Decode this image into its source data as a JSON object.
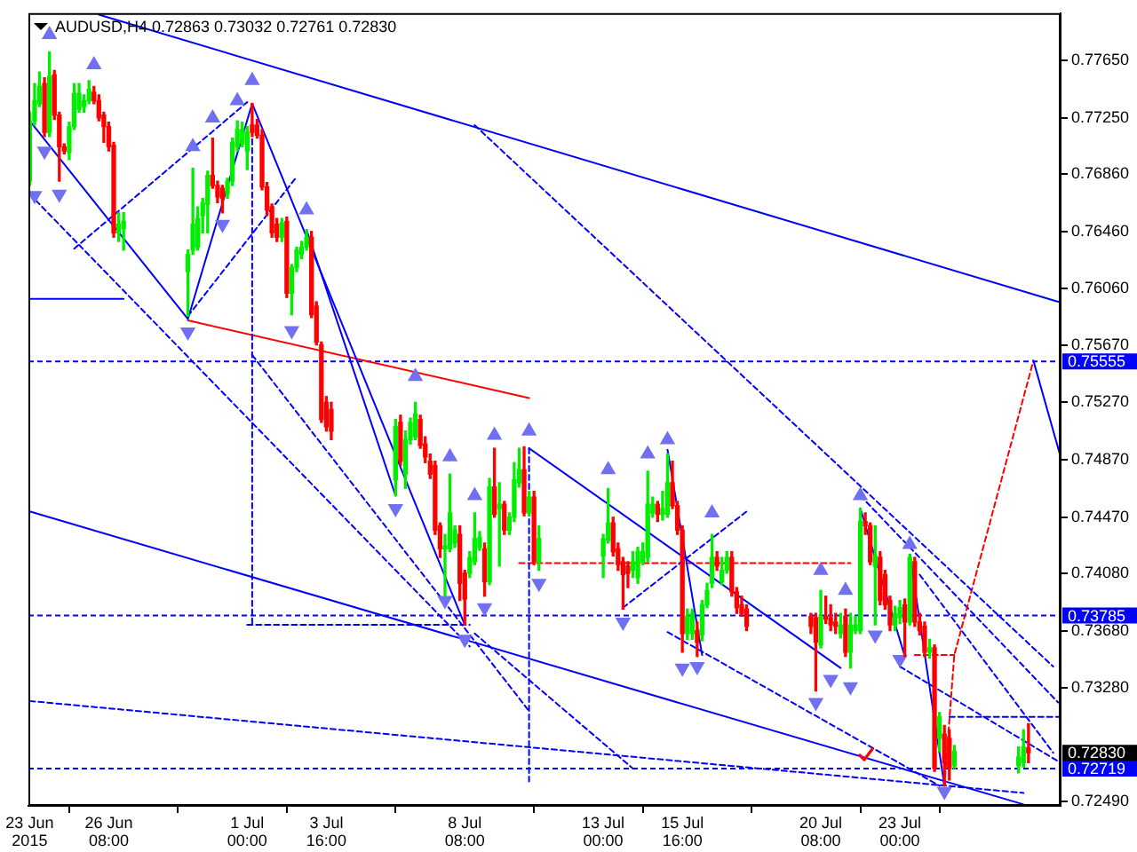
{
  "chart_data": {
    "type": "candlestick",
    "title": "AUDUSD,H4 0.72863 0.73032 0.72761 0.72830",
    "x": [
      "2015-06-23T16:00",
      "2015-06-23T20:00",
      "2015-06-24T00:00",
      "2015-06-24T04:00",
      "2015-06-24T08:00",
      "2015-06-24T12:00",
      "2015-06-24T16:00",
      "2015-06-24T20:00",
      "2015-06-25T00:00",
      "2015-06-25T04:00",
      "2015-06-25T08:00",
      "2015-06-25T12:00",
      "2015-06-25T16:00",
      "2015-06-25T20:00",
      "2015-06-26T00:00",
      "2015-06-26T04:00",
      "2015-06-26T08:00",
      "2015-06-26T12:00",
      "2015-06-26T16:00",
      "2015-06-26T20:00",
      "2015-06-29T00:00",
      "2015-06-29T04:00",
      "2015-06-29T08:00",
      "2015-06-29T12:00",
      "2015-06-29T16:00",
      "2015-06-29T20:00",
      "2015-06-30T00:00",
      "2015-06-30T04:00",
      "2015-06-30T08:00",
      "2015-06-30T12:00",
      "2015-06-30T16:00",
      "2015-06-30T20:00",
      "2015-07-01T00:00",
      "2015-07-01T04:00",
      "2015-07-01T08:00",
      "2015-07-01T12:00",
      "2015-07-01T16:00",
      "2015-07-01T20:00",
      "2015-07-02T00:00",
      "2015-07-02T04:00",
      "2015-07-02T08:00",
      "2015-07-02T12:00",
      "2015-07-02T16:00",
      "2015-07-02T20:00",
      "2015-07-03T00:00",
      "2015-07-03T04:00",
      "2015-07-03T08:00",
      "2015-07-03T12:00",
      "2015-07-03T16:00",
      "2015-07-03T20:00",
      "2015-07-06T00:00",
      "2015-07-06T04:00",
      "2015-07-06T08:00",
      "2015-07-06T12:00",
      "2015-07-06T16:00",
      "2015-07-06T20:00",
      "2015-07-07T00:00",
      "2015-07-07T04:00",
      "2015-07-07T08:00",
      "2015-07-07T12:00",
      "2015-07-07T16:00",
      "2015-07-07T20:00",
      "2015-07-08T00:00",
      "2015-07-08T04:00",
      "2015-07-08T08:00",
      "2015-07-08T12:00",
      "2015-07-08T16:00",
      "2015-07-08T20:00",
      "2015-07-09T00:00",
      "2015-07-09T04:00",
      "2015-07-09T08:00",
      "2015-07-09T12:00",
      "2015-07-09T16:00",
      "2015-07-09T20:00",
      "2015-07-10T00:00",
      "2015-07-10T04:00",
      "2015-07-10T08:00",
      "2015-07-10T12:00",
      "2015-07-10T16:00",
      "2015-07-10T20:00",
      "2015-07-13T00:00",
      "2015-07-13T04:00",
      "2015-07-13T08:00",
      "2015-07-13T12:00",
      "2015-07-13T16:00",
      "2015-07-13T20:00",
      "2015-07-14T00:00",
      "2015-07-14T04:00",
      "2015-07-14T08:00",
      "2015-07-14T12:00",
      "2015-07-14T16:00",
      "2015-07-14T20:00",
      "2015-07-15T00:00",
      "2015-07-15T04:00",
      "2015-07-15T08:00",
      "2015-07-15T12:00",
      "2015-07-15T16:00",
      "2015-07-15T20:00",
      "2015-07-16T00:00",
      "2015-07-16T04:00",
      "2015-07-16T08:00",
      "2015-07-16T12:00",
      "2015-07-16T16:00",
      "2015-07-16T20:00",
      "2015-07-17T00:00",
      "2015-07-17T04:00",
      "2015-07-17T08:00",
      "2015-07-17T12:00",
      "2015-07-17T16:00",
      "2015-07-17T20:00",
      "2015-07-20T00:00",
      "2015-07-20T04:00",
      "2015-07-20T08:00",
      "2015-07-20T12:00",
      "2015-07-20T16:00",
      "2015-07-20T20:00",
      "2015-07-21T00:00",
      "2015-07-21T04:00",
      "2015-07-21T08:00",
      "2015-07-21T12:00",
      "2015-07-21T16:00",
      "2015-07-21T20:00",
      "2015-07-22T00:00",
      "2015-07-22T04:00",
      "2015-07-22T08:00",
      "2015-07-22T12:00",
      "2015-07-22T16:00",
      "2015-07-22T20:00",
      "2015-07-23T00:00",
      "2015-07-23T04:00",
      "2015-07-23T08:00",
      "2015-07-23T12:00",
      "2015-07-23T16:00",
      "2015-07-23T20:00",
      "2015-07-24T00:00",
      "2015-07-24T04:00",
      "2015-07-24T08:00",
      "2015-07-24T12:00",
      "2015-07-24T16:00",
      "2015-07-24T20:00",
      "2015-07-27T00:00",
      "2015-07-27T04:00",
      "2015-07-27T08:00"
    ],
    "ohlc": [
      [
        0.7681,
        0.7729,
        0.7678,
        0.7723
      ],
      [
        0.7723,
        0.7749,
        0.772,
        0.7737
      ],
      [
        0.7735,
        0.7757,
        0.7733,
        0.7747
      ],
      [
        0.7749,
        0.7753,
        0.7712,
        0.7715
      ],
      [
        0.7715,
        0.7771,
        0.7712,
        0.7754
      ],
      [
        0.7755,
        0.7758,
        0.7724,
        0.7727
      ],
      [
        0.7727,
        0.7729,
        0.7681,
        0.7705
      ],
      [
        0.7705,
        0.7707,
        0.77,
        0.7702
      ],
      [
        0.7701,
        0.7722,
        0.7696,
        0.7719
      ],
      [
        0.7719,
        0.7749,
        0.7717,
        0.7742
      ],
      [
        0.7731,
        0.7749,
        0.7729,
        0.7742
      ],
      [
        0.7733,
        0.7741,
        0.7729,
        0.7737
      ],
      [
        0.7737,
        0.7751,
        0.7735,
        0.7745
      ],
      [
        0.7743,
        0.7747,
        0.7735,
        0.7737
      ],
      [
        0.7737,
        0.7741,
        0.7723,
        0.7725
      ],
      [
        0.7727,
        0.7729,
        0.7708,
        0.7719
      ],
      [
        0.7719,
        0.7722,
        0.7702,
        0.7705
      ],
      [
        0.7706,
        0.7708,
        0.7642,
        0.7645
      ],
      [
        0.7645,
        0.7659,
        0.7639,
        0.7651
      ],
      [
        0.7648,
        0.7659,
        0.7633,
        0.7653
      ],
      [
        0.7618,
        0.7633,
        0.7587,
        0.763
      ],
      [
        0.7633,
        0.769,
        0.763,
        0.7651
      ],
      [
        0.7635,
        0.7663,
        0.7633,
        0.7655
      ],
      [
        0.7657,
        0.7669,
        0.7645,
        0.7666
      ],
      [
        0.7665,
        0.7688,
        0.7645,
        0.7685
      ],
      [
        0.7685,
        0.7711,
        0.7676,
        0.7678
      ],
      [
        0.7678,
        0.7681,
        0.7666,
        0.767
      ],
      [
        0.7676,
        0.7678,
        0.7659,
        0.7669
      ],
      [
        0.7672,
        0.7683,
        0.7669,
        0.7681
      ],
      [
        0.7681,
        0.7711,
        0.7678,
        0.7708
      ],
      [
        0.7705,
        0.7723,
        0.7702,
        0.7717
      ],
      [
        0.7707,
        0.7722,
        0.7705,
        0.7717
      ],
      [
        0.7702,
        0.7719,
        0.7689,
        0.7715
      ],
      [
        0.772,
        0.7735,
        0.7712,
        0.7715
      ],
      [
        0.772,
        0.7724,
        0.7711,
        0.7713
      ],
      [
        0.7713,
        0.7717,
        0.7675,
        0.7677
      ],
      [
        0.7677,
        0.768,
        0.7657,
        0.7661
      ],
      [
        0.7663,
        0.7665,
        0.7642,
        0.7645
      ],
      [
        0.7651,
        0.7655,
        0.7639,
        0.7642
      ],
      [
        0.7642,
        0.7655,
        0.7639,
        0.7652
      ],
      [
        0.7653,
        0.7656,
        0.76,
        0.7603
      ],
      [
        0.7603,
        0.7623,
        0.7588,
        0.7621
      ],
      [
        0.7621,
        0.7635,
        0.7618,
        0.7633
      ],
      [
        0.763,
        0.7639,
        0.7627,
        0.7635
      ],
      [
        0.7635,
        0.7647,
        0.7633,
        0.7642
      ],
      [
        0.7642,
        0.7646,
        0.7586,
        0.7588
      ],
      [
        0.7594,
        0.7597,
        0.7567,
        0.7569
      ],
      [
        0.7567,
        0.7569,
        0.7513,
        0.7515
      ],
      [
        0.7527,
        0.7531,
        0.7507,
        0.751
      ],
      [
        0.7522,
        0.7527,
        0.7501,
        0.7507
      ],
      [
        0.7473,
        0.7515,
        0.7462,
        0.751
      ],
      [
        0.7513,
        0.7518,
        0.7483,
        0.7486
      ],
      [
        0.7477,
        0.7507,
        0.7467,
        0.7501
      ],
      [
        0.7501,
        0.7516,
        0.7498,
        0.7513
      ],
      [
        0.7503,
        0.7527,
        0.7501,
        0.7519
      ],
      [
        0.7515,
        0.7518,
        0.7495,
        0.7497
      ],
      [
        0.7498,
        0.7503,
        0.7485,
        0.7489
      ],
      [
        0.7486,
        0.7491,
        0.7474,
        0.7477
      ],
      [
        0.7483,
        0.7486,
        0.7435,
        0.7438
      ],
      [
        0.7441,
        0.7443,
        0.7419,
        0.7425
      ],
      [
        0.7425,
        0.7435,
        0.7392,
        0.7427
      ],
      [
        0.7425,
        0.7477,
        0.7423,
        0.745
      ],
      [
        0.7429,
        0.7441,
        0.7426,
        0.7438
      ],
      [
        0.7435,
        0.7441,
        0.7389,
        0.7401
      ],
      [
        0.7408,
        0.741,
        0.7372,
        0.739
      ],
      [
        0.7408,
        0.7423,
        0.7405,
        0.7419
      ],
      [
        0.7416,
        0.745,
        0.7414,
        0.7432
      ],
      [
        0.7426,
        0.7437,
        0.7424,
        0.7433
      ],
      [
        0.7425,
        0.7429,
        0.7392,
        0.7402
      ],
      [
        0.7402,
        0.7474,
        0.74,
        0.7468
      ],
      [
        0.7468,
        0.7495,
        0.7447,
        0.7449
      ],
      [
        0.7453,
        0.7471,
        0.7413,
        0.7456
      ],
      [
        0.7456,
        0.7458,
        0.7435,
        0.7438
      ],
      [
        0.7438,
        0.745,
        0.7435,
        0.7447
      ],
      [
        0.7447,
        0.7485,
        0.7444,
        0.7473
      ],
      [
        0.7471,
        0.7495,
        0.7468,
        0.748
      ],
      [
        0.748,
        0.7496,
        0.7448,
        0.745
      ],
      [
        0.745,
        0.7465,
        0.7448,
        0.7461
      ],
      [
        0.7461,
        0.7465,
        0.7414,
        0.7416
      ],
      [
        0.7416,
        0.7441,
        0.741,
        0.7432
      ],
      [
        0.742,
        0.7435,
        0.7405,
        0.7432
      ],
      [
        0.7431,
        0.7467,
        0.7429,
        0.7443
      ],
      [
        0.7443,
        0.7447,
        0.742,
        0.7423
      ],
      [
        0.7425,
        0.7429,
        0.741,
        0.7414
      ],
      [
        0.7416,
        0.7419,
        0.7383,
        0.7407
      ],
      [
        0.7413,
        0.7416,
        0.7398,
        0.7408
      ],
      [
        0.741,
        0.7423,
        0.7405,
        0.7416
      ],
      [
        0.7405,
        0.7426,
        0.7401,
        0.7423
      ],
      [
        0.7416,
        0.7429,
        0.7414,
        0.7423
      ],
      [
        0.7419,
        0.7479,
        0.7416,
        0.7456
      ],
      [
        0.745,
        0.7461,
        0.7447,
        0.7456
      ],
      [
        0.7456,
        0.7458,
        0.7444,
        0.7449
      ],
      [
        0.7449,
        0.7465,
        0.7445,
        0.7453
      ],
      [
        0.7449,
        0.7491,
        0.7447,
        0.7471
      ],
      [
        0.7471,
        0.7486,
        0.7453,
        0.7455
      ],
      [
        0.7455,
        0.7458,
        0.7435,
        0.7438
      ],
      [
        0.7438,
        0.7441,
        0.7353,
        0.7366
      ],
      [
        0.7366,
        0.7383,
        0.7362,
        0.7378
      ],
      [
        0.7366,
        0.7383,
        0.7362,
        0.738
      ],
      [
        0.7368,
        0.7374,
        0.735,
        0.736
      ],
      [
        0.7365,
        0.7389,
        0.7361,
        0.7386
      ],
      [
        0.7386,
        0.7401,
        0.7384,
        0.7396
      ],
      [
        0.7401,
        0.7435,
        0.7398,
        0.7419
      ],
      [
        0.7419,
        0.7423,
        0.741,
        0.7413
      ],
      [
        0.7402,
        0.7419,
        0.74,
        0.741
      ],
      [
        0.741,
        0.7423,
        0.7408,
        0.7419
      ],
      [
        0.7419,
        0.7423,
        0.7392,
        0.7395
      ],
      [
        0.7395,
        0.7398,
        0.738,
        0.7384
      ],
      [
        0.7386,
        0.7392,
        0.7378,
        0.738
      ],
      [
        0.7383,
        0.7386,
        0.7368,
        0.7371
      ],
      [
        0.7378,
        0.738,
        0.7366,
        0.7371
      ],
      [
        0.7377,
        0.738,
        0.7326,
        0.736
      ],
      [
        0.7358,
        0.7396,
        0.7356,
        0.7378
      ],
      [
        0.7378,
        0.7392,
        0.7373,
        0.7376
      ],
      [
        0.7377,
        0.7386,
        0.7368,
        0.7372
      ],
      [
        0.7374,
        0.738,
        0.7366,
        0.7371
      ],
      [
        0.7366,
        0.738,
        0.7363,
        0.7372
      ],
      [
        0.7378,
        0.7383,
        0.735,
        0.7353
      ],
      [
        0.7353,
        0.738,
        0.7342,
        0.7372
      ],
      [
        0.7368,
        0.7378,
        0.7366,
        0.7372
      ],
      [
        0.7368,
        0.7453,
        0.7366,
        0.7444
      ],
      [
        0.7444,
        0.745,
        0.7435,
        0.7441
      ],
      [
        0.7441,
        0.7443,
        0.7414,
        0.7416
      ],
      [
        0.7413,
        0.7441,
        0.7372,
        0.742
      ],
      [
        0.7419,
        0.7423,
        0.7386,
        0.7389
      ],
      [
        0.7407,
        0.741,
        0.7383,
        0.7386
      ],
      [
        0.7389,
        0.7392,
        0.7368,
        0.7372
      ],
      [
        0.7372,
        0.7385,
        0.7368,
        0.738
      ],
      [
        0.7377,
        0.7389,
        0.7373,
        0.7384
      ],
      [
        0.7386,
        0.739,
        0.735,
        0.7374
      ],
      [
        0.7374,
        0.7421,
        0.7372,
        0.7419
      ],
      [
        0.7416,
        0.7419,
        0.7371,
        0.7374
      ],
      [
        0.7374,
        0.738,
        0.7365,
        0.7368
      ],
      [
        0.7371,
        0.7374,
        0.735,
        0.7353
      ],
      [
        0.7353,
        0.7362,
        0.7349,
        0.7356
      ],
      [
        0.7356,
        0.7358,
        0.727,
        0.7272
      ],
      [
        0.7293,
        0.7311,
        0.7284,
        0.7308
      ],
      [
        0.7296,
        0.7302,
        0.726,
        0.7276
      ],
      [
        0.7293,
        0.7299,
        0.7264,
        0.7272
      ],
      [
        0.7274,
        0.7288,
        0.7272,
        0.7284
      ],
      [
        0.7274,
        0.7287,
        0.7269,
        0.728
      ],
      [
        0.7276,
        0.7299,
        0.7273,
        0.7287
      ],
      [
        0.72863,
        0.73032,
        0.72761,
        0.7283
      ]
    ],
    "colors": [
      "#00ee00",
      "#00ee00",
      "#00ee00",
      "#ff0000",
      "#00ee00",
      "#ff0000",
      "#ff0000",
      "#ff0000",
      "#00ee00",
      "#00ee00",
      "#00ee00",
      "#00ee00",
      "#00ee00",
      "#ff0000",
      "#ff0000",
      "#ff0000",
      "#ff0000",
      "#ff0000",
      "#00ee00",
      "#00ee00",
      "#00ee00",
      "#00ee00",
      "#00ee00",
      "#00ee00",
      "#00ee00",
      "#ff0000",
      "#ff0000",
      "#ff0000",
      "#00ee00",
      "#00ee00",
      "#00ee00",
      "#00ee00",
      "#00ee00",
      "#ff0000",
      "#ff0000",
      "#ff0000",
      "#ff0000",
      "#ff0000",
      "#ff0000",
      "#00ee00",
      "#ff0000",
      "#00ee00",
      "#00ee00",
      "#00ee00",
      "#00ee00",
      "#ff0000",
      "#ff0000",
      "#ff0000",
      "#ff0000",
      "#ff0000",
      "#00ee00",
      "#ff0000",
      "#00ee00",
      "#00ee00",
      "#00ee00",
      "#ff0000",
      "#ff0000",
      "#ff0000",
      "#ff0000",
      "#ff0000",
      "#00ee00",
      "#00ee00",
      "#00ee00",
      "#ff0000",
      "#ff0000",
      "#00ee00",
      "#00ee00",
      "#00ee00",
      "#ff0000",
      "#00ee00",
      "#ff0000",
      "#00ee00",
      "#ff0000",
      "#00ee00",
      "#00ee00",
      "#00ee00",
      "#ff0000",
      "#00ee00",
      "#ff0000",
      "#00ee00",
      "#00ee00",
      "#00ee00",
      "#ff0000",
      "#ff0000",
      "#ff0000",
      "#ff0000",
      "#00ee00",
      "#00ee00",
      "#00ee00",
      "#00ee00",
      "#00ee00",
      "#ff0000",
      "#00ee00",
      "#00ee00",
      "#ff0000",
      "#ff0000",
      "#ff0000",
      "#00ee00",
      "#00ee00",
      "#ff0000",
      "#00ee00",
      "#00ee00",
      "#00ee00",
      "#ff0000",
      "#00ee00",
      "#00ee00",
      "#ff0000",
      "#ff0000",
      "#ff0000",
      "#ff0000",
      "#ff0000",
      "#ff0000",
      "#00ee00",
      "#ff0000",
      "#ff0000",
      "#ff0000",
      "#00ee00",
      "#ff0000",
      "#00ee00",
      "#00ee00",
      "#00ee00",
      "#ff0000",
      "#ff0000",
      "#00ee00",
      "#ff0000",
      "#ff0000",
      "#ff0000",
      "#00ee00",
      "#00ee00",
      "#ff0000",
      "#00ee00",
      "#ff0000",
      "#ff0000",
      "#ff0000",
      "#00ee00",
      "#ff0000",
      "#00ee00",
      "#ff0000",
      "#ff0000",
      "#00ee00",
      "#00ee00",
      "#00ee00",
      "#ff0000"
    ],
    "xlim": [
      "2015-06-23T15:00",
      "2015-07-28T10:00"
    ],
    "xticks": [
      {
        "value": "2015-06-23T16:00",
        "label": "23 Jun 2015"
      },
      {
        "value": "2015-06-26T08:00",
        "label": "26 Jun 08:00"
      },
      {
        "value": "2015-07-01T00:00",
        "label": "1 Jul 00:00"
      },
      {
        "value": "2015-07-03T16:00",
        "label": "3 Jul 16:00"
      },
      {
        "value": "2015-07-08T08:00",
        "label": "8 Jul 08:00"
      },
      {
        "value": "2015-07-13T00:00",
        "label": "13 Jul 00:00"
      },
      {
        "value": "2015-07-15T16:00",
        "label": "15 Jul 16:00"
      },
      {
        "value": "2015-07-20T08:00",
        "label": "20 Jul 08:00"
      },
      {
        "value": "2015-07-23T00:00",
        "label": "23 Jul 00:00"
      }
    ],
    "ylim": [
      0.7246,
      0.7798
    ],
    "yticks": [
      {
        "value": 0.7765,
        "label": "0.77650"
      },
      {
        "value": 0.7725,
        "label": "0.77250"
      },
      {
        "value": 0.7686,
        "label": "0.76860"
      },
      {
        "value": 0.7646,
        "label": "0.76460"
      },
      {
        "value": 0.7606,
        "label": "0.76060"
      },
      {
        "value": 0.7567,
        "label": "0.75670"
      },
      {
        "value": 0.7527,
        "label": "0.75270"
      },
      {
        "value": 0.7487,
        "label": "0.74870"
      },
      {
        "value": 0.7447,
        "label": "0.74470"
      },
      {
        "value": 0.7408,
        "label": "0.74080"
      },
      {
        "value": 0.7368,
        "label": "0.73680"
      },
      {
        "value": 0.7328,
        "label": "0.73280"
      },
      {
        "value": 0.7249,
        "label": "0.72490"
      }
    ],
    "series": [
      {
        "type": "line",
        "color": "#0000ff",
        "line_style": "solid",
        "x": [
          "2015-06-26T00:00",
          "2015-07-28T08:00"
        ],
        "values": [
          0.7797,
          0.7597
        ]
      },
      {
        "type": "line",
        "color": "#0000ff",
        "line_style": "solid",
        "x": [
          "2015-06-23T16:00",
          "2015-07-27T04:00"
        ],
        "values": [
          0.7451,
          0.7247
        ]
      },
      {
        "type": "line",
        "color": "#0000ff",
        "line_style": "solid",
        "x": [
          "2015-06-23T16:00",
          "2015-06-26T20:00"
        ],
        "values": [
          0.7599,
          0.7599
        ]
      },
      {
        "type": "line",
        "color": "#0000ff",
        "line_style": "solid",
        "x": [
          "2015-06-23T16:00",
          "2015-06-29T00:00",
          "2015-07-01T04:00",
          "2015-07-08T08:00"
        ],
        "values": [
          0.7723,
          0.7585,
          0.7735,
          0.7372
        ]
      },
      {
        "type": "line",
        "color": "#0000ff",
        "line_style": "solid",
        "x": [
          "2015-07-03T00:00",
          "2015-07-06T00:00"
        ],
        "values": [
          0.7647,
          0.7462
        ]
      },
      {
        "type": "line",
        "color": "#0000ff",
        "line_style": "solid",
        "x": [
          "2015-07-10T12:00",
          "2015-07-21T00:00"
        ],
        "values": [
          0.7495,
          0.7342
        ]
      },
      {
        "type": "line",
        "color": "#0000ff",
        "line_style": "solid",
        "x": [
          "2015-07-15T04:00",
          "2015-07-16T08:00"
        ],
        "values": [
          0.7494,
          0.7351
        ]
      },
      {
        "type": "line",
        "color": "#0000ff",
        "line_style": "solid",
        "x": [
          "2015-07-21T16:00",
          "2015-07-23T04:00"
        ],
        "values": [
          0.7453,
          0.735
        ]
      },
      {
        "type": "line",
        "color": "#0000ff",
        "line_style": "solid",
        "x": [
          "2015-07-23T08:00",
          "2015-07-24T12:00"
        ],
        "values": [
          0.7421,
          0.726
        ]
      },
      {
        "type": "line",
        "color": "#0000ff",
        "line_style": "solid",
        "x": [
          "2015-07-27T12:00",
          "2015-07-28T10:00"
        ],
        "values": [
          0.7556,
          0.7489
        ]
      },
      {
        "type": "line",
        "color": "#0000ff",
        "line_style": "dashed",
        "x": [
          "2015-07-08T16:00",
          "2015-07-28T04:00"
        ],
        "values": [
          0.772,
          0.7343
        ]
      },
      {
        "type": "line",
        "color": "#0000ff",
        "line_style": "dashed",
        "x": [
          "2015-07-13T16:00",
          "2015-07-17T20:00"
        ],
        "values": [
          0.7384,
          0.7451
        ]
      },
      {
        "type": "line",
        "color": "#0000ff",
        "line_style": "dashed",
        "x": [
          "2015-06-23T16:00",
          "2015-07-27T04:00"
        ],
        "values": [
          0.7319,
          0.7255
        ]
      },
      {
        "type": "line",
        "color": "#0000ff",
        "line_style": "dashed",
        "x": [
          "2015-06-29T00:00",
          "2015-07-02T16:00"
        ],
        "values": [
          0.7587,
          0.7684
        ]
      },
      {
        "type": "line",
        "color": "#0000ff",
        "line_style": "dashed",
        "x": [
          "2015-07-08T16:00",
          "2015-07-14T00:00"
        ],
        "values": [
          0.7366,
          0.7272
        ]
      },
      {
        "type": "line",
        "color": "#0000ff",
        "line_style": "dashed",
        "x": [
          "2015-07-01T04:00",
          "2015-07-10T12:00"
        ],
        "values": [
          0.756,
          0.7312
        ]
      },
      {
        "type": "line",
        "color": "#0000ff",
        "line_style": "dashed",
        "x": [
          "2015-07-01T00:00",
          "2015-07-08T12:00"
        ],
        "values": [
          0.7372,
          0.7372
        ]
      },
      {
        "type": "line",
        "color": "#0000ff",
        "line_style": "dashed",
        "x": [
          "2015-07-01T04:00",
          "2015-07-01T04:00"
        ],
        "values": [
          0.7735,
          0.7372
        ]
      },
      {
        "type": "line",
        "color": "#0000ff",
        "line_style": "dashed",
        "x": [
          "2015-07-10T12:00",
          "2015-07-10T12:00"
        ],
        "values": [
          0.7495,
          0.7263
        ]
      },
      {
        "type": "line",
        "color": "#0000ff",
        "line_style": "dashed",
        "x": [
          "2015-07-24T16:00",
          "2015-07-28T10:00"
        ],
        "values": [
          0.7308,
          0.7308
        ]
      },
      {
        "type": "line",
        "color": "#0000ff",
        "line_style": "dashed",
        "x": [
          "2015-06-23T16:00",
          "2015-07-08T12:00"
        ],
        "values": [
          0.7672,
          0.7357
        ]
      },
      {
        "type": "line",
        "color": "#0000ff",
        "line_style": "dashed",
        "x": [
          "2015-06-25T04:00",
          "2015-07-01T00:00"
        ],
        "values": [
          0.7634,
          0.7736
        ]
      },
      {
        "type": "line",
        "color": "#ff0000",
        "line_style": "solid",
        "x": [
          "2015-06-29T00:00",
          "2015-07-10T12:00"
        ],
        "values": [
          0.7584,
          0.753
        ]
      },
      {
        "type": "line",
        "color": "#ff0000",
        "line_style": "dashed",
        "x": [
          "2015-07-10T04:00",
          "2015-07-21T08:00"
        ],
        "values": [
          0.7415,
          0.7415
        ]
      },
      {
        "type": "line",
        "color": "#ff0000",
        "line_style": "dashed",
        "x": [
          "2015-07-23T12:00",
          "2015-07-24T20:00"
        ],
        "values": [
          0.7351,
          0.7351
        ]
      },
      {
        "type": "line",
        "color": "#ff0000",
        "line_style": "dashed",
        "x": [
          "2015-07-24T12:00",
          "2015-07-24T20:00",
          "2015-07-27T12:00"
        ],
        "values": [
          0.726,
          0.7351,
          0.7556
        ]
      },
      {
        "type": "scatter",
        "color": "#7070f0",
        "marker": "triangle",
        "x": [
          "2015-06-23T20:00",
          "2015-06-24T04:00",
          "2015-06-24T08:00",
          "2015-06-24T16:00",
          "2015-06-25T20:00",
          "2015-06-29T00:00",
          "2015-06-29T04:00",
          "2015-06-29T20:00",
          "2015-06-30T04:00",
          "2015-06-30T16:00",
          "2015-07-01T04:00",
          "2015-07-02T12:00",
          "2015-07-03T00:00",
          "2015-07-06T00:00",
          "2015-07-06T16:00",
          "2015-07-07T16:00",
          "2015-07-07T20:00",
          "2015-07-08T08:00",
          "2015-07-08T16:00",
          "2015-07-09T00:00",
          "2015-07-09T08:00",
          "2015-07-10T12:00",
          "2015-07-10T20:00",
          "2015-07-13T04:00",
          "2015-07-13T16:00",
          "2015-07-14T12:00",
          "2015-07-15T04:00",
          "2015-07-15T16:00",
          "2015-07-16T04:00",
          "2015-07-16T16:00",
          "2015-07-20T04:00",
          "2015-07-20T08:00",
          "2015-07-20T16:00",
          "2015-07-21T04:00",
          "2015-07-21T08:00",
          "2015-07-21T16:00",
          "2015-07-22T04:00",
          "2015-07-23T00:00",
          "2015-07-23T08:00",
          "2015-07-24T12:00"
        ],
        "values": [
          0.7671,
          0.7702,
          0.7783,
          0.7672,
          0.7762,
          0.7576,
          0.7705,
          0.7725,
          0.7651,
          0.7737,
          0.7751,
          0.7577,
          0.7661,
          0.7453,
          0.7545,
          0.7389,
          0.7489,
          0.7362,
          0.7462,
          0.7384,
          0.7504,
          0.7507,
          0.7401,
          0.748,
          0.7374,
          0.7491,
          0.7501,
          0.7342,
          0.7343,
          0.745,
          0.7318,
          0.741,
          0.7334,
          0.7396,
          0.7329,
          0.7462,
          0.7365,
          0.7348,
          0.7428,
          0.7256
        ]
      },
      {
        "type": "line",
        "color": "#0000ff",
        "line_style": "dashed",
        "x": [
          "2015-07-21T16:00",
          "2015-07-28T08:00"
        ],
        "values": [
          0.7462,
          0.7318
        ]
      },
      {
        "type": "line",
        "color": "#0000ff",
        "line_style": "dashed",
        "x": [
          "2015-07-23T16:00",
          "2015-07-28T04:00"
        ],
        "values": [
          0.7407,
          0.7283
        ]
      },
      {
        "type": "line",
        "color": "#0000ff",
        "line_style": "dashed",
        "x": [
          "2015-07-23T00:00",
          "2015-07-28T10:00"
        ],
        "values": [
          0.7343,
          0.7276
        ]
      },
      {
        "type": "line",
        "color": "#0000ff",
        "line_style": "dashed",
        "x": [
          "2015-07-15T04:00",
          "2015-07-24T08:00"
        ],
        "values": [
          0.7367,
          0.726
        ]
      }
    ],
    "ref_lines": [
      {
        "axis": "y",
        "value": 0.75555,
        "label": "0.75555",
        "color": "#0000ff",
        "line_style": "dashed"
      },
      {
        "axis": "y",
        "value": 0.73785,
        "label": "0.73785",
        "color": "#0000ff",
        "line_style": "dashed"
      },
      {
        "axis": "y",
        "value": 0.72719,
        "label": "0.72719",
        "color": "#0000ff",
        "line_style": "dashed"
      }
    ],
    "annotations": [
      "0.72830"
    ]
  }
}
